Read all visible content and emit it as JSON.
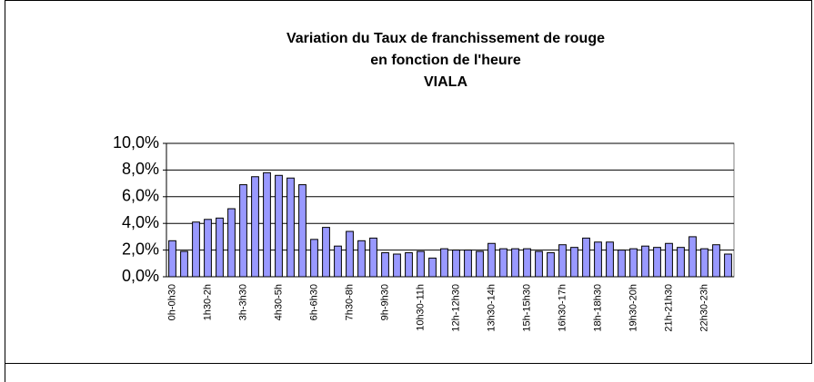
{
  "chart_data": {
    "type": "bar",
    "title": [
      "Variation du Taux de franchissement de rouge",
      "en fonction de l'heure",
      "VIALA"
    ],
    "categories": [
      "0h-0h30",
      null,
      null,
      "1h30-2h",
      null,
      null,
      "3h-3h30",
      null,
      null,
      "4h30-5h",
      null,
      null,
      "6h-6h30",
      null,
      null,
      "7h30-8h",
      null,
      null,
      "9h-9h30",
      null,
      null,
      "10h30-11h",
      null,
      null,
      "12h-12h30",
      null,
      null,
      "13h30-14h",
      null,
      null,
      "15h-15h30",
      null,
      null,
      "16h30-17h",
      null,
      null,
      "18h-18h30",
      null,
      null,
      "19h30-20h",
      null,
      null,
      "21h-21h30",
      null,
      null,
      "22h30-23h",
      null,
      null
    ],
    "values": [
      2.7,
      1.9,
      4.1,
      4.3,
      4.4,
      5.1,
      6.9,
      7.5,
      7.8,
      7.6,
      7.4,
      6.9,
      2.8,
      3.7,
      2.3,
      3.4,
      2.7,
      2.9,
      1.8,
      1.7,
      1.8,
      1.9,
      1.4,
      2.1,
      2.0,
      2.0,
      1.9,
      2.5,
      2.1,
      2.1,
      2.1,
      1.9,
      1.8,
      2.4,
      2.2,
      2.9,
      2.6,
      2.6,
      2.0,
      2.1,
      2.3,
      2.2,
      2.5,
      2.2,
      3.0,
      2.1,
      2.4,
      1.7
    ],
    "color": "#9999ff",
    "ylim": [
      0,
      10
    ],
    "yticks": [
      {
        "value": 0,
        "label": "0,0%"
      },
      {
        "value": 2,
        "label": "2,0%"
      },
      {
        "value": 4,
        "label": "4,0%"
      },
      {
        "value": 6,
        "label": "6,0%"
      },
      {
        "value": 8,
        "label": "8,0%"
      },
      {
        "value": 10,
        "label": "10,0%"
      }
    ],
    "grid": true
  }
}
